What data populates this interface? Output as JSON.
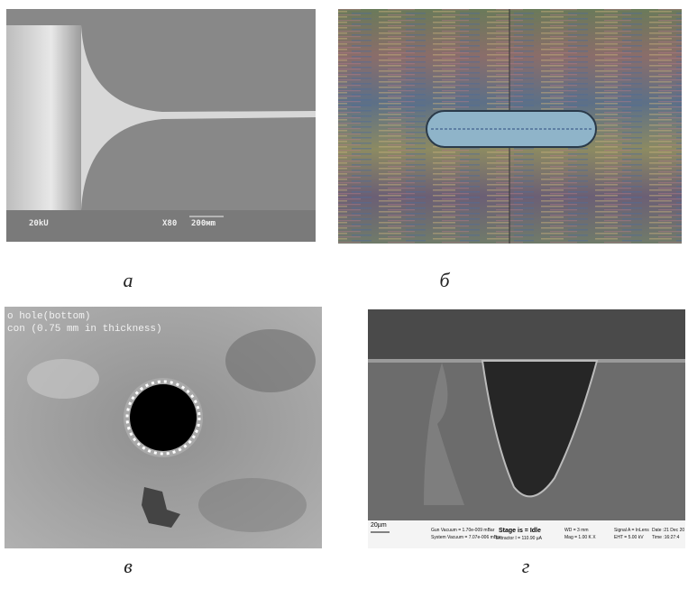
{
  "panels": [
    {
      "caption": "а",
      "labels": [
        "20kU",
        "X80",
        "200мm"
      ]
    },
    {
      "caption": "б",
      "labels": []
    },
    {
      "caption": "в",
      "labels": [
        "o hole(bottom)",
        "con (0.75 mm in thickness)"
      ]
    },
    {
      "caption": "г",
      "labels": [
        "20µm",
        "Gun Vacuum = 1.70e-009 mBar",
        "System Vacuum = 7.07e-006 mBar",
        "Stage is = Idle",
        "Extractor I = 110.90 µA",
        "WD =   3 mm",
        "Mag =  1.00 K X",
        "Signal A = InLens",
        "EHT =  5.00 kV",
        "Date :21 Dec 20",
        "Time :16:27:4"
      ]
    }
  ]
}
